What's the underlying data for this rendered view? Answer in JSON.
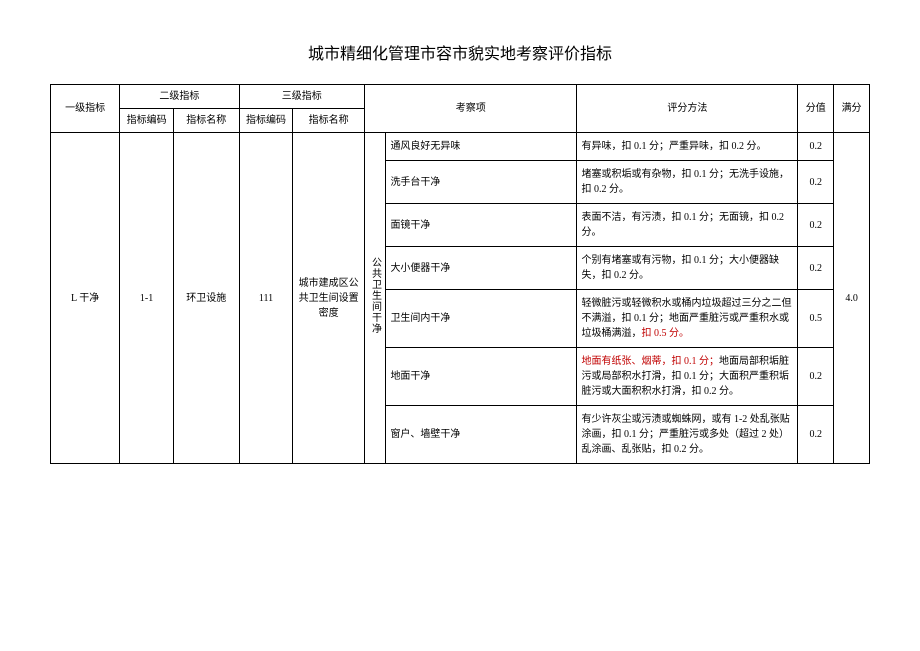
{
  "title": "城市精细化管理市容市貌实地考察评价指标",
  "headers": {
    "level1": "一级指标",
    "level2": "二级指标",
    "level3": "三级指标",
    "code": "指标编码",
    "name": "指标名称",
    "item": "考察项",
    "method": "评分方法",
    "score": "分值",
    "full": "满分"
  },
  "body": {
    "level1": "L 干净",
    "code2": "1-1",
    "name2": "环卫设施",
    "code3": "111",
    "name3": "城市建成区公共卫生间设置密度",
    "vertical": "公共卫生间干净",
    "full_score": "4.0",
    "rows": [
      {
        "item": "通风良好无异味",
        "method": "有异味，扣 0.1 分；严重异味，扣 0.2 分。",
        "score": "0.2"
      },
      {
        "item": "洗手台干净",
        "method": "堵塞或积垢或有杂物，扣 0.1 分；无洗手设施，扣 0.2 分。",
        "score": "0.2"
      },
      {
        "item": "面镜干净",
        "method": "表面不洁，有污渍，扣 0.1 分；无面镜，扣 0.2 分。",
        "score": "0.2"
      },
      {
        "item": "大小便器干净",
        "method": "个别有堵塞或有污物，扣 0.1 分；大小便器缺失，扣 0.2 分。",
        "score": "0.2"
      },
      {
        "item": "卫生间内干净",
        "method_prefix": "轻微脏污或轻微积水或桶内垃圾超过三分之二但不满溢，扣 0.1 分；地面严重脏污或严重积水或垃圾桶满溢，",
        "method_highlight": "扣 0.5 分。",
        "score": "0.5"
      },
      {
        "item": "地面干净",
        "method_highlight": "地面有纸张、烟蒂，扣 0.1 分；",
        "method_suffix": "地面局部积垢脏污或局部积水打滑，扣 0.1 分；大面积严重积垢脏污或大面积积水打滑，扣 0.2 分。",
        "score": "0.2"
      },
      {
        "item": "窗户、墙壁干净",
        "method": "有少许灰尘或污渍或蜘蛛网，或有 1-2 处乱张贴涂画，扣 0.1 分；严重脏污或多处（超过 2 处）乱涂画、乱张贴，扣 0.2 分。",
        "score": "0.2"
      }
    ]
  }
}
